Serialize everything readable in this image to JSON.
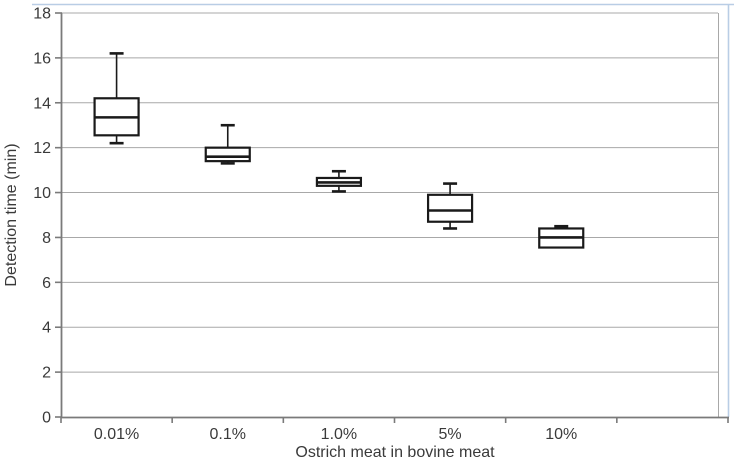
{
  "chart": {
    "ylabel": "Detection time (min)",
    "xlabel": "Ostrich meat in bovine meat"
  },
  "chart_data": {
    "type": "box",
    "title": "",
    "xlabel": "Ostrich meat in bovine meat",
    "ylabel": "Detection time (min)",
    "categories": [
      "0.01%",
      "0.1%",
      "1.0%",
      "5%",
      "10%"
    ],
    "series": [
      {
        "category": "0.01%",
        "min": 12.2,
        "q1": 12.55,
        "median": 13.35,
        "q3": 14.2,
        "max": 16.2
      },
      {
        "category": "0.1%",
        "min": 11.3,
        "q1": 11.4,
        "median": 11.6,
        "q3": 12.0,
        "max": 13.0
      },
      {
        "category": "1.0%",
        "min": 10.05,
        "q1": 10.3,
        "median": 10.45,
        "q3": 10.65,
        "max": 10.95
      },
      {
        "category": "5%",
        "min": 8.4,
        "q1": 8.7,
        "median": 9.2,
        "q3": 9.9,
        "max": 10.4
      },
      {
        "category": "10%",
        "min": 7.55,
        "q1": 7.55,
        "median": 8.0,
        "q3": 8.4,
        "max": 8.5
      }
    ],
    "ylim": [
      0,
      18
    ],
    "yticks": [
      0,
      2,
      4,
      6,
      8,
      10,
      12,
      14,
      16,
      18
    ],
    "x_slots": 6,
    "grid": true,
    "legend": false,
    "colors": {
      "background": "#ffffff",
      "chart_border": "#b9cde5",
      "gridline": "#a8a8a8",
      "plot_border": "#a8a8a8",
      "axis": "#7a7a7a",
      "text": "#3a3a3a",
      "box_stroke": "#1a1a1a",
      "box_fill": "#ffffff"
    }
  }
}
